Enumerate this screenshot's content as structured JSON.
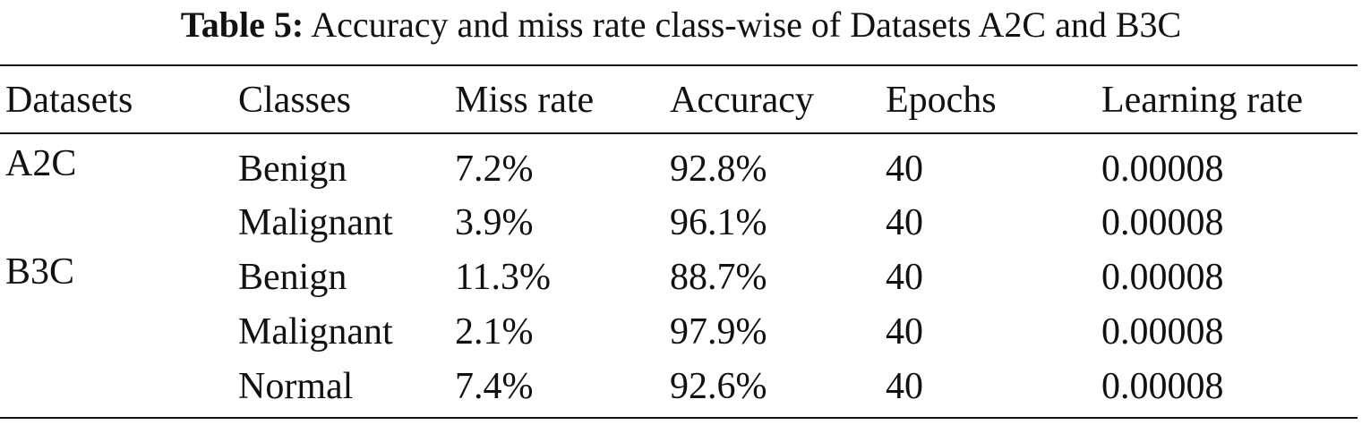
{
  "caption": {
    "label": "Table 5:",
    "text": "Accuracy and miss rate class-wise of Datasets A2C and B3C"
  },
  "table": {
    "headers": [
      "Datasets",
      "Classes",
      "Miss rate",
      "Accuracy",
      "Epochs",
      "Learning rate"
    ],
    "groups": [
      {
        "dataset": "A2C",
        "rows": [
          {
            "class": "Benign",
            "miss_rate": "7.2%",
            "accuracy": "92.8%",
            "epochs": "40",
            "learning_rate": "0.00008"
          },
          {
            "class": "Malignant",
            "miss_rate": "3.9%",
            "accuracy": "96.1%",
            "epochs": "40",
            "learning_rate": "0.00008"
          }
        ]
      },
      {
        "dataset": "B3C",
        "rows": [
          {
            "class": "Benign",
            "miss_rate": "11.3%",
            "accuracy": "88.7%",
            "epochs": "40",
            "learning_rate": "0.00008"
          },
          {
            "class": "Malignant",
            "miss_rate": "2.1%",
            "accuracy": "97.9%",
            "epochs": "40",
            "learning_rate": "0.00008"
          },
          {
            "class": "Normal",
            "miss_rate": "7.4%",
            "accuracy": "92.6%",
            "epochs": "40",
            "learning_rate": "0.00008"
          }
        ]
      }
    ]
  }
}
